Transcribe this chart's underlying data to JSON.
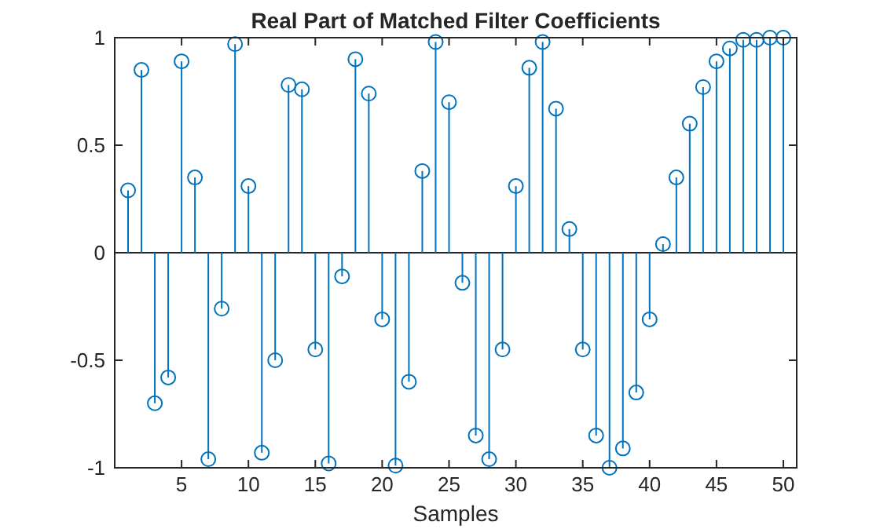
{
  "chart_data": {
    "type": "lollipop",
    "title": "Real Part of Matched Filter Coefficients",
    "xlabel": "Samples",
    "x": [
      1,
      2,
      3,
      4,
      5,
      6,
      7,
      8,
      9,
      10,
      11,
      12,
      13,
      14,
      15,
      16,
      17,
      18,
      19,
      20,
      21,
      22,
      23,
      24,
      25,
      26,
      27,
      28,
      29,
      30,
      31,
      32,
      33,
      34,
      35,
      36,
      37,
      38,
      39,
      40,
      41,
      42,
      43,
      44,
      45,
      46,
      47,
      48,
      49,
      50
    ],
    "values": [
      0.29,
      0.85,
      -0.7,
      -0.58,
      0.89,
      0.35,
      -0.96,
      -0.26,
      0.97,
      0.31,
      -0.93,
      -0.5,
      0.78,
      0.76,
      -0.45,
      -0.98,
      -0.11,
      0.9,
      0.74,
      -0.31,
      -0.99,
      -0.6,
      0.38,
      0.98,
      0.7,
      -0.14,
      -0.85,
      -0.96,
      -0.45,
      0.31,
      0.86,
      0.98,
      0.67,
      0.11,
      -0.45,
      -0.85,
      -1.0,
      -0.91,
      -0.65,
      -0.31,
      0.04,
      0.35,
      0.6,
      0.77,
      0.89,
      0.95,
      0.99,
      0.99,
      1.0,
      1.0
    ],
    "color": "#0072bd",
    "marker": "circle",
    "ref_lines": [
      {
        "axis": "y",
        "value": 0,
        "color": "#262626"
      }
    ],
    "xlim": [
      0,
      51
    ],
    "xticks": [
      5,
      10,
      15,
      20,
      25,
      30,
      35,
      40,
      45,
      50
    ],
    "ylim": [
      -1,
      1
    ],
    "yticks": [
      -1,
      -0.5,
      0,
      0.5,
      1
    ]
  }
}
